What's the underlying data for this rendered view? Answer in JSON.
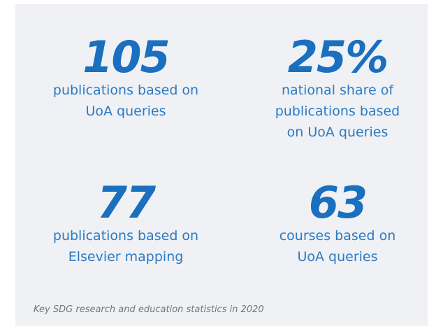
{
  "stats": [
    {
      "value": "105",
      "lines": [
        "publications based on",
        "UoA queries"
      ]
    },
    {
      "value": "25%",
      "lines": [
        "national share of",
        "publications based",
        "on UoA queries"
      ]
    },
    {
      "value": "77",
      "lines": [
        "publications based on",
        "Elsevier mapping"
      ]
    },
    {
      "value": "63",
      "lines": [
        "courses based on",
        "UoA queries"
      ]
    }
  ],
  "caption": "Key SDG research and education statistics in 2020"
}
